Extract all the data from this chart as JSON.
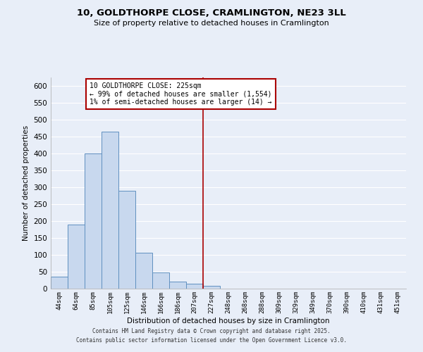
{
  "title1": "10, GOLDTHORPE CLOSE, CRAMLINGTON, NE23 3LL",
  "title2": "Size of property relative to detached houses in Cramlington",
  "xlabel": "Distribution of detached houses by size in Cramlington",
  "ylabel": "Number of detached properties",
  "bar_labels": [
    "44sqm",
    "64sqm",
    "85sqm",
    "105sqm",
    "125sqm",
    "146sqm",
    "166sqm",
    "186sqm",
    "207sqm",
    "227sqm",
    "248sqm",
    "268sqm",
    "288sqm",
    "309sqm",
    "329sqm",
    "349sqm",
    "370sqm",
    "390sqm",
    "410sqm",
    "431sqm",
    "451sqm"
  ],
  "bar_heights": [
    35,
    190,
    400,
    465,
    290,
    107,
    48,
    20,
    15,
    8,
    0,
    0,
    0,
    0,
    0,
    0,
    0,
    0,
    0,
    0,
    0
  ],
  "bar_color": "#c8d8ee",
  "bar_edge_color": "#6090c0",
  "vline_color": "#aa0000",
  "annotation_title": "10 GOLDTHORPE CLOSE: 225sqm",
  "annotation_line1": "← 99% of detached houses are smaller (1,554)",
  "annotation_line2": "1% of semi-detached houses are larger (14) →",
  "annotation_box_color": "#ffffff",
  "annotation_box_edge": "#aa0000",
  "ylim": [
    0,
    625
  ],
  "yticks": [
    0,
    50,
    100,
    150,
    200,
    250,
    300,
    350,
    400,
    450,
    500,
    550,
    600
  ],
  "background_color": "#e8eef8",
  "grid_color": "#ffffff",
  "footer1": "Contains HM Land Registry data © Crown copyright and database right 2025.",
  "footer2": "Contains public sector information licensed under the Open Government Licence v3.0."
}
